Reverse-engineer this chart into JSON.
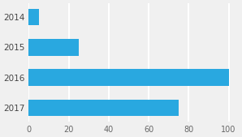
{
  "categories": [
    "2014",
    "2015",
    "2016",
    "2017"
  ],
  "values": [
    5,
    25,
    100,
    75
  ],
  "bar_color": "#29a8e0",
  "background_color": "#f0f0f0",
  "xlim": [
    0,
    105
  ],
  "xticks": [
    0,
    20,
    40,
    60,
    80,
    100
  ],
  "bar_height": 0.55,
  "grid_color": "#ffffff",
  "label_fontsize": 7.5,
  "tick_fontsize": 7
}
